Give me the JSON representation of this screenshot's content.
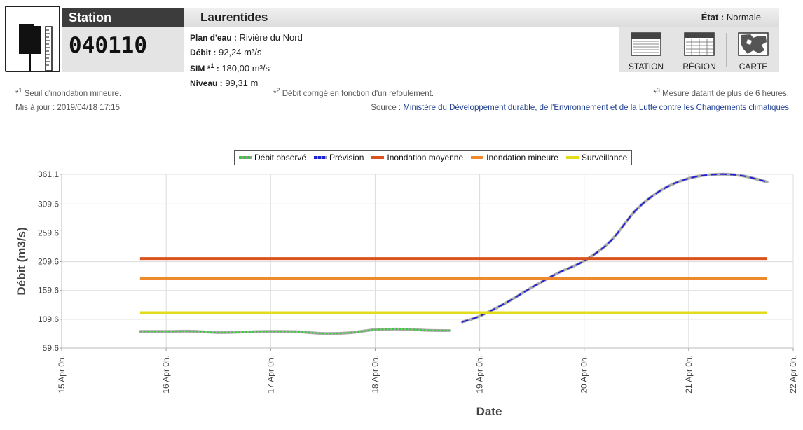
{
  "header": {
    "station_label": "Station",
    "station_number": "040110",
    "region": "Laurentides",
    "etat_label": "État :",
    "etat_value": "Normale"
  },
  "info": {
    "plan_label": "Plan d'eau :",
    "plan_value": "Rivière du Nord",
    "debit_label": "Débit :",
    "debit_value": "92,24 m³/s",
    "sim_label": "SIM *",
    "sim_sup": "1",
    "sim_colon": " :",
    "sim_value": "180,00 m³/s",
    "niveau_label": "Niveau :",
    "niveau_value": "99,31 m"
  },
  "nav": {
    "station": "STATION",
    "region": "RÉGION",
    "carte": "CARTE"
  },
  "notes": {
    "n1_sup": "1",
    "n1_text": "Seuil d'inondation mineure.",
    "n2_sup": "2",
    "n2_text": "Débit corrigé en fonction d'un refoulement.",
    "n3_sup": "3",
    "n3_text": "Mesure datant de plus de 6 heures.",
    "updated": "Mis à jour : 2019/04/18 17:15",
    "source_label": "Source :",
    "source_link": "Ministère du Développement durable, de l'Environnement et de la Lutte contre les Changements climatiques"
  },
  "colors": {
    "observed": "#33cc33",
    "forecast": "#1f1fd6",
    "moyenne": "#d9531e",
    "mineure": "#ee8a2b",
    "surveillance": "#e3dc1b"
  },
  "chart_data": {
    "type": "line",
    "xlabel": "Date",
    "ylabel": "Débit (m3/s)",
    "ylim": [
      59.6,
      361.1
    ],
    "yticks": [
      59.6,
      109.6,
      159.6,
      209.6,
      259.6,
      309.6,
      361.1
    ],
    "ytick_labels": [
      "59.6",
      "109.6",
      "159.6",
      "209.6",
      "259.6",
      "309.6",
      "361.1"
    ],
    "xlim": [
      "2019-04-15 00:00",
      "2019-04-22 00:00"
    ],
    "xtick_labels": [
      "15 Apr 0h.",
      "16 Apr 0h.",
      "17 Apr 0h.",
      "18 Apr 0h.",
      "19 Apr 0h.",
      "20 Apr 0h.",
      "21 Apr 0h.",
      "22 Apr 0h."
    ],
    "grid": true,
    "legend_position": "top-center",
    "legend": [
      "Débit observé",
      "Prévision",
      "Inondation moyenne",
      "Inondation mineure",
      "Surveillance"
    ],
    "series": [
      {
        "name": "Débit observé",
        "x": [
          "2019-04-15 18:00",
          "2019-04-16 00:00",
          "2019-04-16 06:00",
          "2019-04-16 12:00",
          "2019-04-16 18:00",
          "2019-04-17 00:00",
          "2019-04-17 06:00",
          "2019-04-17 12:00",
          "2019-04-17 18:00",
          "2019-04-18 00:00",
          "2019-04-18 06:00",
          "2019-04-18 12:00",
          "2019-04-18 17:00"
        ],
        "values": [
          88.5,
          88.5,
          88.8,
          86.5,
          87.5,
          88.5,
          88,
          85,
          86,
          91.5,
          92.5,
          90.5,
          90
        ]
      },
      {
        "name": "Prévision",
        "x": [
          "2019-04-18 20:00",
          "2019-04-19 00:00",
          "2019-04-19 06:00",
          "2019-04-19 12:00",
          "2019-04-19 18:00",
          "2019-04-20 00:00",
          "2019-04-20 06:00",
          "2019-04-20 12:00",
          "2019-04-20 18:00",
          "2019-04-21 00:00",
          "2019-04-21 06:00",
          "2019-04-21 12:00",
          "2019-04-21 18:00"
        ],
        "values": [
          105,
          115,
          138,
          165,
          190,
          211,
          245,
          300,
          335,
          354,
          361,
          359,
          348
        ]
      },
      {
        "name": "Inondation moyenne",
        "x": [
          "2019-04-15 18:00",
          "2019-04-21 18:00"
        ],
        "values": [
          215,
          215
        ]
      },
      {
        "name": "Inondation mineure",
        "x": [
          "2019-04-15 18:00",
          "2019-04-21 18:00"
        ],
        "values": [
          180,
          180
        ]
      },
      {
        "name": "Surveillance",
        "x": [
          "2019-04-15 18:00",
          "2019-04-21 18:00"
        ],
        "values": [
          121,
          121
        ]
      }
    ]
  }
}
